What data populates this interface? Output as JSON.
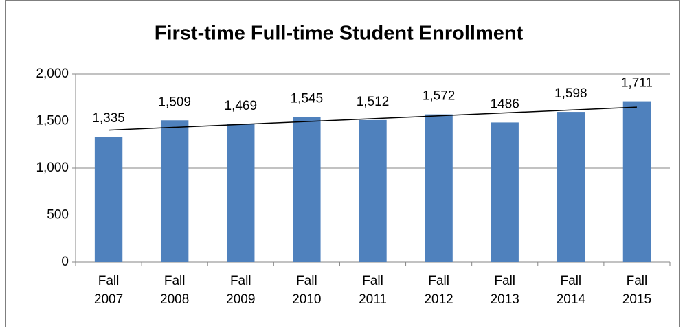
{
  "chart_data": {
    "type": "bar",
    "title": "First-time Full-time Student Enrollment",
    "categories": [
      "Fall 2007",
      "Fall 2008",
      "Fall 2009",
      "Fall 2010",
      "Fall 2011",
      "Fall 2012",
      "Fall 2013",
      "Fall 2014",
      "Fall 2015"
    ],
    "values": [
      1335,
      1509,
      1469,
      1545,
      1512,
      1572,
      1486,
      1598,
      1711
    ],
    "value_labels": [
      "1,335",
      "1,509",
      "1,469",
      "1,545",
      "1,512",
      "1,572",
      "1486",
      "1,598",
      "1,711"
    ],
    "color": "#4f81bd",
    "ylim": [
      0,
      2000
    ],
    "yticks": [
      0,
      500,
      {
        "value": 1000,
        "label": "1,000"
      },
      {
        "value": 1500,
        "label": "1,500"
      },
      {
        "value": 2000,
        "label": "2,000"
      }
    ],
    "grid": true,
    "trendline": "linear"
  }
}
